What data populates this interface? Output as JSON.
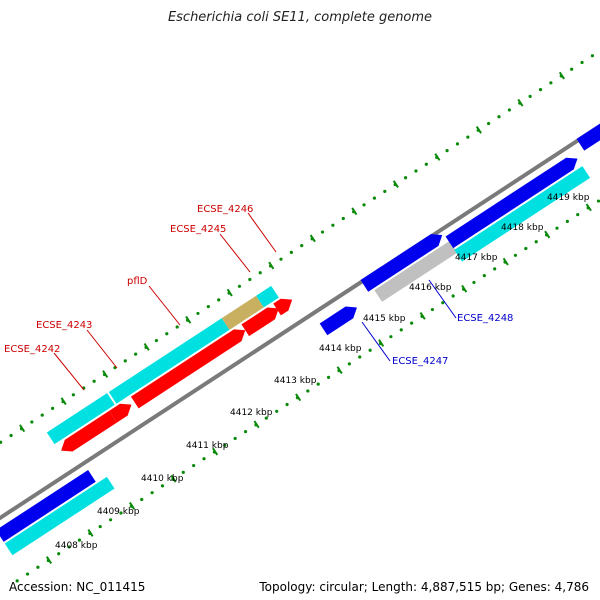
{
  "title": "Escherichia coli SE11, complete genome",
  "footer": {
    "accession": "Accession: NC_011415",
    "summary": "Topology: circular; Length: 4,887,515 bp; Genes: 4,786"
  },
  "colors": {
    "backbone": "#888888",
    "tick": "#0a8a0a",
    "forward_cds": "#00e0e0",
    "reverse_cds": "#ff0000",
    "other_cds": "#0000ee",
    "pseudo": "#c0c0c0",
    "highlight": "#c8b060",
    "red_label": "#cc0000",
    "blue_label": "#0000cc"
  },
  "scale_labels": [
    "4408 kbp",
    "4409 kbp",
    "4410 kbp",
    "4411 kbp",
    "4412 kbp",
    "4413 kbp",
    "4414 kbp",
    "4415 kbp",
    "4416 kbp",
    "4417 kbp",
    "4418 kbp",
    "4419 kbp"
  ],
  "gene_labels": [
    {
      "name": "ECSE_4242",
      "color": "red"
    },
    {
      "name": "ECSE_4243",
      "color": "red"
    },
    {
      "name": "pflD",
      "color": "red"
    },
    {
      "name": "ECSE_4245",
      "color": "red"
    },
    {
      "name": "ECSE_4246",
      "color": "red"
    },
    {
      "name": "ECSE_4247",
      "color": "blue"
    },
    {
      "name": "ECSE_4248",
      "color": "blue"
    }
  ]
}
